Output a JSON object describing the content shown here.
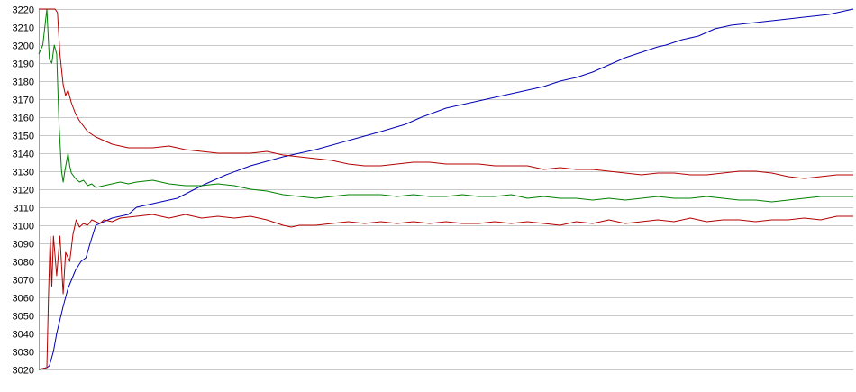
{
  "chart_data": {
    "type": "line",
    "title": "",
    "xlabel": "",
    "ylabel": "",
    "grid": true,
    "ylim": [
      3020,
      3220
    ],
    "xlim": [
      0,
      100
    ],
    "yticks": [
      3020,
      3030,
      3040,
      3050,
      3060,
      3070,
      3080,
      3090,
      3100,
      3110,
      3120,
      3130,
      3140,
      3150,
      3160,
      3170,
      3180,
      3190,
      3200,
      3210,
      3220
    ],
    "series": [
      {
        "color": "#0000b4",
        "x": [
          0,
          1,
          1.3,
          1.8,
          2.2,
          3,
          3.6,
          4.5,
          5.2,
          5.8,
          6.3,
          7,
          8,
          9,
          11,
          12,
          13,
          14,
          15,
          17,
          20,
          23,
          26,
          30,
          34,
          38,
          42,
          45,
          47,
          50,
          53,
          56,
          58,
          60,
          62,
          64,
          66,
          68,
          70,
          72,
          74,
          76,
          77,
          79,
          81,
          83,
          85,
          87,
          89,
          91,
          93,
          95,
          97,
          100
        ],
        "y": [
          3020,
          3021,
          3022,
          3030,
          3040,
          3055,
          3065,
          3075,
          3080,
          3082,
          3090,
          3100,
          3102,
          3104,
          3106,
          3110,
          3111,
          3112,
          3113,
          3115,
          3122,
          3128,
          3133,
          3138,
          3142,
          3147,
          3152,
          3156,
          3160,
          3165,
          3168,
          3171,
          3173,
          3175,
          3177,
          3180,
          3182,
          3185,
          3189,
          3193,
          3196,
          3199,
          3200,
          3203,
          3205,
          3209,
          3211,
          3212,
          3213,
          3214,
          3215,
          3216,
          3217,
          3220
        ]
      },
      {
        "color": "#b40000",
        "x": [
          0,
          1,
          1.2,
          1.4,
          1.6,
          1.8,
          2.2,
          2.6,
          3,
          3.3,
          3.8,
          4.2,
          4.6,
          5,
          5.5,
          6,
          6.5,
          7,
          7.5,
          8,
          9,
          10,
          12,
          14,
          16,
          18,
          20,
          22,
          24,
          26,
          28,
          30,
          31,
          32,
          34,
          36,
          38,
          40,
          42,
          44,
          46,
          48,
          50,
          52,
          54,
          56,
          58,
          60,
          62,
          64,
          66,
          68,
          70,
          72,
          74,
          76,
          78,
          80,
          82,
          84,
          86,
          88,
          90,
          92,
          94,
          96,
          98,
          100
        ],
        "y": [
          3020,
          3021,
          3060,
          3094,
          3066,
          3094,
          3072,
          3094,
          3062,
          3085,
          3080,
          3095,
          3103,
          3099,
          3101,
          3100,
          3103,
          3102,
          3101,
          3103,
          3102,
          3104,
          3105,
          3106,
          3104,
          3106,
          3104,
          3105,
          3104,
          3105,
          3103,
          3100,
          3099,
          3100,
          3100,
          3101,
          3102,
          3101,
          3102,
          3101,
          3102,
          3101,
          3102,
          3101,
          3101,
          3102,
          3101,
          3102,
          3101,
          3100,
          3102,
          3101,
          3103,
          3101,
          3102,
          3103,
          3102,
          3104,
          3102,
          3103,
          3103,
          3102,
          3103,
          3103,
          3104,
          3103,
          3105,
          3105
        ]
      },
      {
        "color": "#008000",
        "x": [
          0,
          0.5,
          1,
          1.3,
          1.6,
          1.9,
          2.2,
          2.5,
          2.8,
          3,
          3.2,
          3.4,
          3.6,
          3.8,
          4,
          4.5,
          5,
          5.5,
          6,
          6.5,
          7,
          8,
          9,
          10,
          11,
          12,
          14,
          16,
          18,
          20,
          22,
          24,
          26,
          28,
          30,
          32,
          34,
          36,
          38,
          40,
          42,
          44,
          46,
          48,
          50,
          52,
          54,
          56,
          58,
          60,
          62,
          64,
          66,
          68,
          70,
          72,
          74,
          76,
          78,
          80,
          82,
          84,
          86,
          88,
          90,
          92,
          94,
          96,
          98,
          100
        ],
        "y": [
          3195,
          3200,
          3220,
          3192,
          3190,
          3200,
          3195,
          3155,
          3130,
          3124,
          3130,
          3135,
          3140,
          3133,
          3129,
          3126,
          3124,
          3125,
          3122,
          3123,
          3121,
          3122,
          3123,
          3124,
          3123,
          3124,
          3125,
          3123,
          3122,
          3122,
          3123,
          3122,
          3120,
          3119,
          3117,
          3116,
          3115,
          3116,
          3117,
          3117,
          3117,
          3116,
          3117,
          3116,
          3116,
          3117,
          3116,
          3116,
          3117,
          3115,
          3116,
          3115,
          3115,
          3114,
          3115,
          3114,
          3115,
          3116,
          3115,
          3115,
          3116,
          3115,
          3114,
          3114,
          3113,
          3114,
          3115,
          3116,
          3116,
          3116
        ]
      },
      {
        "color": "#b40000",
        "x": [
          0,
          0.3,
          0.6,
          1,
          1.5,
          2,
          2.3,
          2.6,
          3,
          3.3,
          3.6,
          4,
          4.5,
          5,
          5.5,
          6,
          7,
          8,
          9,
          10,
          11,
          12,
          14,
          16,
          18,
          20,
          22,
          24,
          26,
          28,
          30,
          32,
          34,
          36,
          38,
          40,
          42,
          44,
          46,
          48,
          50,
          52,
          54,
          56,
          58,
          60,
          62,
          64,
          66,
          68,
          70,
          72,
          74,
          76,
          78,
          80,
          82,
          84,
          86,
          88,
          90,
          92,
          94,
          96,
          98,
          100
        ],
        "y": [
          3220,
          3220,
          3220,
          3220,
          3220,
          3220,
          3218,
          3195,
          3178,
          3172,
          3175,
          3168,
          3162,
          3158,
          3155,
          3152,
          3149,
          3147,
          3145,
          3144,
          3143,
          3143,
          3143,
          3144,
          3142,
          3141,
          3140,
          3140,
          3140,
          3141,
          3139,
          3138,
          3137,
          3136,
          3134,
          3133,
          3133,
          3134,
          3135,
          3135,
          3134,
          3134,
          3134,
          3133,
          3133,
          3133,
          3131,
          3132,
          3131,
          3131,
          3130,
          3129,
          3128,
          3129,
          3129,
          3128,
          3128,
          3129,
          3130,
          3130,
          3129,
          3127,
          3126,
          3127,
          3128,
          3128
        ]
      }
    ]
  }
}
